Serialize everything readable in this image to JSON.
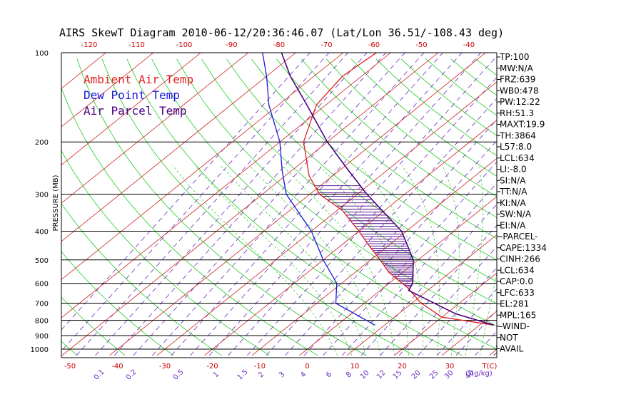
{
  "title": "AIRS SkewT Diagram 2010-06-12/20:36:46.07 (Lat/Lon 36.51/-108.43 deg)",
  "colors": {
    "ambient": "#e02020",
    "dewpoint": "#1a1adc",
    "parcel": "#4b0082",
    "isotherm": "#cc2222",
    "dry_adiabat": "#22cc22",
    "mixing_ratio": "#6a2cc0",
    "moist_adiabat": "#22cc22",
    "isobar": "#000000",
    "top_axis": "#cc0000",
    "bottom_axis": "#cc0000",
    "mixing_label": "#6a2cc0",
    "text": "#000000"
  },
  "legend": [
    {
      "label": "Ambient Air Temp",
      "color": "#e02020"
    },
    {
      "label": "Dew Point Temp",
      "color": "#1a1adc"
    },
    {
      "label": "Air Parcel Temp",
      "color": "#4b0082"
    }
  ],
  "chart_data": {
    "type": "line",
    "title": "AIRS SkewT Diagram 2010-06-12/20:36:46.07 (Lat/Lon 36.51/-108.43 deg)",
    "ylabel": "PRESSURE (MB)",
    "xlabel": "T(C)",
    "y_scale": "log",
    "ylim": [
      1000,
      100
    ],
    "xlim_bottom": [
      -50,
      40
    ],
    "pressure_ticks": [
      100,
      200,
      300,
      400,
      500,
      600,
      700,
      800,
      900,
      1000
    ],
    "pressure_tick_labels": [
      "100",
      "200",
      "300",
      "400",
      "500",
      "600",
      "700",
      "800",
      "900",
      "1000"
    ],
    "bottom_temp_ticks": [
      -50,
      -40,
      -30,
      -20,
      -10,
      0,
      10,
      20,
      30
    ],
    "bottom_temp_labels": [
      "-50",
      "-40",
      "-30",
      "-20",
      "-10",
      "0",
      "10",
      "20",
      "30"
    ],
    "bottom_axis_unit": "T(C)",
    "top_temp_ticks": [
      -120,
      -110,
      -100,
      -90,
      -80,
      -70,
      -60,
      -50,
      -40
    ],
    "top_temp_labels": [
      "-120",
      "-110",
      "-100",
      "-90",
      "-80",
      "-70",
      "-60",
      "-50",
      "-40"
    ],
    "mixing_ratio_labels": [
      "0.1",
      "0.2",
      "0.5",
      "1",
      "1.5",
      "2",
      "3",
      "4",
      "6",
      "8",
      "10",
      "12",
      "15",
      "20",
      "25",
      "30",
      "40"
    ],
    "mixing_ratio_unit": "Q(g/kg)",
    "series": [
      {
        "name": "Ambient Air Temp",
        "points": [
          {
            "p": 830,
            "t": 33
          },
          {
            "p": 780,
            "t": 20
          },
          {
            "p": 700,
            "t": 12
          },
          {
            "p": 620,
            "t": 5
          },
          {
            "p": 550,
            "t": -3
          },
          {
            "p": 500,
            "t": -8
          },
          {
            "p": 440,
            "t": -15
          },
          {
            "p": 400,
            "t": -20
          },
          {
            "p": 340,
            "t": -29
          },
          {
            "p": 300,
            "t": -38
          },
          {
            "p": 260,
            "t": -45
          },
          {
            "p": 200,
            "t": -55
          },
          {
            "p": 150,
            "t": -62
          },
          {
            "p": 120,
            "t": -64
          },
          {
            "p": 100,
            "t": -63
          }
        ]
      },
      {
        "name": "Dew Point Temp",
        "points": [
          {
            "p": 830,
            "t": 8
          },
          {
            "p": 700,
            "t": -6
          },
          {
            "p": 600,
            "t": -11
          },
          {
            "p": 500,
            "t": -20
          },
          {
            "p": 400,
            "t": -30
          },
          {
            "p": 300,
            "t": -45
          },
          {
            "p": 250,
            "t": -52
          },
          {
            "p": 200,
            "t": -60
          },
          {
            "p": 150,
            "t": -72
          },
          {
            "p": 120,
            "t": -80
          },
          {
            "p": 100,
            "t": -87
          }
        ]
      },
      {
        "name": "Air Parcel Temp",
        "points": [
          {
            "p": 830,
            "t": 33
          },
          {
            "p": 760,
            "t": 22
          },
          {
            "p": 634,
            "t": 6
          },
          {
            "p": 600,
            "t": 5
          },
          {
            "p": 500,
            "t": -1
          },
          {
            "p": 400,
            "t": -11
          },
          {
            "p": 300,
            "t": -28
          },
          {
            "p": 250,
            "t": -38
          },
          {
            "p": 200,
            "t": -50
          },
          {
            "p": 150,
            "t": -64
          },
          {
            "p": 120,
            "t": -75
          },
          {
            "p": 100,
            "t": -83
          }
        ]
      }
    ]
  },
  "indices": [
    "TP:100",
    "MW:N/A",
    "FRZ:639",
    "WB0:478",
    "PW:12.22",
    "RH:51.3",
    "MAXT:19.9",
    "TH:3864",
    "L57:8.0",
    "LCL:634",
    "LI:-8.0",
    "SI:N/A",
    "TT:N/A",
    "KI:N/A",
    "SW:N/A",
    "EI:N/A",
    "-PARCEL-",
    "CAPE:1334",
    "CINH:266",
    "LCL:634",
    "CAP:0.0",
    "LFC:633",
    "EL:281",
    "MPL:165",
    "-WIND-",
    "NOT",
    "AVAIL"
  ]
}
